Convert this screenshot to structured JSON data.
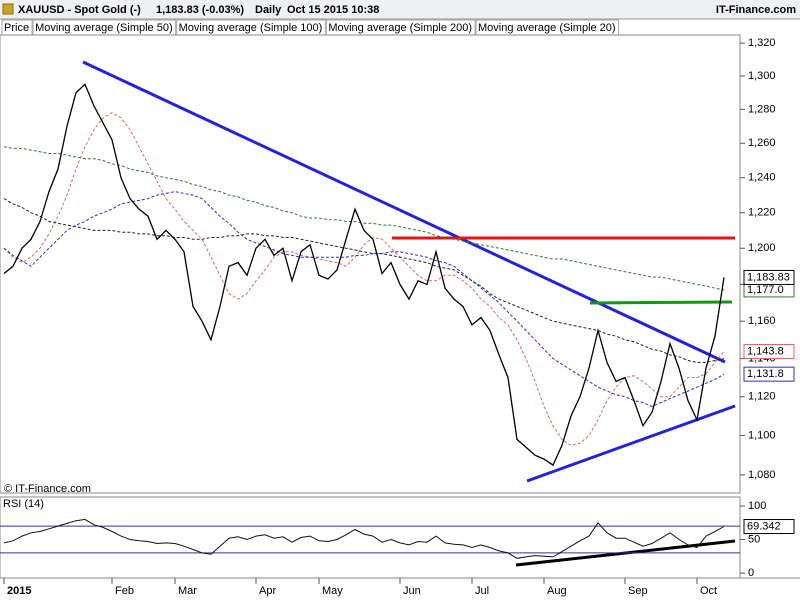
{
  "header": {
    "symbol": "XAUUSD - Spot Gold (-)",
    "quote": "1,183.83 (-0.03%)",
    "period": "Daily",
    "timestamp": "Oct 15 2015 10:38",
    "brand": "IT-Finance.com"
  },
  "watermark": "© IT-Finance.com",
  "chart_data": [
    {
      "type": "line",
      "log_y": true,
      "categories": [
        "2015",
        null,
        null,
        null,
        null,
        null,
        null,
        null,
        null,
        null,
        null,
        null,
        "Feb",
        null,
        null,
        null,
        null,
        null,
        null,
        "Mar",
        null,
        null,
        null,
        null,
        null,
        null,
        null,
        null,
        "Apr",
        null,
        null,
        null,
        null,
        null,
        null,
        "May",
        null,
        null,
        null,
        null,
        null,
        null,
        null,
        null,
        "Jun",
        null,
        null,
        null,
        null,
        null,
        null,
        null,
        "Jul",
        null,
        null,
        null,
        null,
        null,
        null,
        null,
        "Aug",
        null,
        null,
        null,
        null,
        null,
        null,
        null,
        null,
        "Sep",
        null,
        null,
        null,
        null,
        null,
        null,
        null,
        "Oct",
        null,
        null,
        null
      ],
      "ylim": [
        1071,
        1325
      ],
      "yticks": [
        {
          "value": 1080,
          "label": "1,080"
        },
        {
          "value": 1100,
          "label": "1,100"
        },
        {
          "value": 1120,
          "label": "1,120"
        },
        {
          "value": 1140,
          "label": "1,140"
        },
        {
          "value": 1160,
          "label": "1,160"
        },
        {
          "value": 1180,
          "label": "1,180"
        },
        {
          "value": 1200,
          "label": "1,200"
        },
        {
          "value": 1220,
          "label": "1,220"
        },
        {
          "value": 1240,
          "label": "1,240"
        },
        {
          "value": 1260,
          "label": "1,260"
        },
        {
          "value": 1280,
          "label": "1,280"
        },
        {
          "value": 1300,
          "label": "1,300"
        },
        {
          "value": 1320,
          "label": "1,320"
        }
      ],
      "series": [
        {
          "name": "Price",
          "color": "#000000",
          "dashed": false,
          "last_label": "1,183.83",
          "values": [
            1186,
            1190,
            1200,
            1205,
            1215,
            1232,
            1245,
            1270,
            1290,
            1295,
            1282,
            1272,
            1262,
            1240,
            1228,
            1222,
            1218,
            1205,
            1210,
            1205,
            1198,
            1168,
            1160,
            1150,
            1168,
            1190,
            1192,
            1185,
            1200,
            1205,
            1196,
            1200,
            1182,
            1198,
            1202,
            1185,
            1183,
            1188,
            1205,
            1222,
            1210,
            1205,
            1186,
            1192,
            1180,
            1172,
            1182,
            1180,
            1198,
            1178,
            1172,
            1168,
            1158,
            1162,
            1155,
            1142,
            1130,
            1098,
            1094,
            1090,
            1088,
            1085,
            1095,
            1110,
            1120,
            1135,
            1155,
            1138,
            1128,
            1130,
            1118,
            1105,
            1112,
            1128,
            1148,
            1135,
            1118,
            1108,
            1135,
            1152,
            1183.83
          ]
        },
        {
          "name": "Moving average (Simple 50)",
          "color": "#2b2bd9",
          "dashed": true,
          "last_label": "1,131.8",
          "values": [
            1200,
            1196,
            1193,
            1190,
            1195,
            1200,
            1205,
            1210,
            1213,
            1215,
            1218,
            1220,
            1222,
            1225,
            1226,
            1227,
            1228,
            1230,
            1231,
            1232,
            1231,
            1230,
            1228,
            1223,
            1218,
            1214,
            1209,
            1205,
            1203,
            1201,
            1199,
            1197,
            1196,
            1195,
            1195,
            1195,
            1195,
            1195,
            1195,
            1196,
            1196,
            1197,
            1197,
            1198,
            1198,
            1197,
            1196,
            1195,
            1193,
            1192,
            1190,
            1186,
            1182,
            1178,
            1174,
            1170,
            1165,
            1160,
            1155,
            1150,
            1145,
            1140,
            1137,
            1134,
            1131,
            1128,
            1125,
            1123,
            1121,
            1120,
            1118,
            1117,
            1115,
            1117,
            1119,
            1121,
            1123,
            1125,
            1127,
            1129,
            1131.8
          ]
        },
        {
          "name": "Moving average (Simple 100)",
          "color": "#222222",
          "dashed": true,
          "values": [
            1228,
            1225,
            1223,
            1220,
            1218,
            1215,
            1214,
            1213,
            1212,
            1211,
            1210,
            1210,
            1210,
            1209,
            1209,
            1208,
            1208,
            1207,
            1207,
            1206,
            1206,
            1205,
            1205,
            1206,
            1206,
            1207,
            1207,
            1208,
            1208,
            1207,
            1207,
            1206,
            1206,
            1205,
            1204,
            1203,
            1202,
            1201,
            1200,
            1199,
            1198,
            1197,
            1197,
            1196,
            1195,
            1194,
            1193,
            1192,
            1190,
            1189,
            1188,
            1185,
            1182,
            1179,
            1175,
            1172,
            1170,
            1168,
            1166,
            1164,
            1162,
            1160,
            1159,
            1158,
            1157,
            1156,
            1155,
            1153,
            1152,
            1150,
            1149,
            1147,
            1145,
            1144,
            1142,
            1141,
            1139,
            1138,
            1138,
            1139,
            1140
          ]
        },
        {
          "name": "Moving average (Simple 200)",
          "color": "#2e7d2e",
          "dashed": true,
          "last_label": "1,177.0",
          "values": [
            1258,
            1257,
            1257,
            1256,
            1255,
            1254,
            1254,
            1253,
            1252,
            1251,
            1251,
            1250,
            1248,
            1247,
            1245,
            1244,
            1243,
            1241,
            1240,
            1239,
            1238,
            1236,
            1235,
            1233,
            1232,
            1230,
            1229,
            1227,
            1226,
            1224,
            1223,
            1221,
            1220,
            1218,
            1217,
            1217,
            1216,
            1216,
            1215,
            1215,
            1214,
            1214,
            1213,
            1213,
            1212,
            1211,
            1210,
            1209,
            1207,
            1206,
            1205,
            1204,
            1203,
            1202,
            1201,
            1200,
            1199,
            1198,
            1197,
            1196,
            1195,
            1194,
            1194,
            1193,
            1192,
            1191,
            1190,
            1189,
            1188,
            1187,
            1186,
            1185,
            1184,
            1184,
            1183,
            1182,
            1181,
            1180,
            1179,
            1178,
            1177
          ]
        },
        {
          "name": "Moving average (Simple 20)",
          "color": "#e06666",
          "dashed": true,
          "last_label": "1,143.8",
          "values": [
            1200,
            1195,
            1192,
            1195,
            1200,
            1208,
            1218,
            1230,
            1245,
            1258,
            1268,
            1275,
            1278,
            1275,
            1268,
            1258,
            1248,
            1238,
            1228,
            1222,
            1215,
            1210,
            1205,
            1195,
            1185,
            1175,
            1172,
            1175,
            1182,
            1188,
            1195,
            1198,
            1198,
            1196,
            1195,
            1194,
            1193,
            1192,
            1190,
            1195,
            1202,
            1206,
            1205,
            1200,
            1195,
            1190,
            1185,
            1182,
            1182,
            1185,
            1185,
            1182,
            1178,
            1172,
            1168,
            1162,
            1158,
            1150,
            1140,
            1128,
            1115,
            1105,
            1098,
            1095,
            1096,
            1100,
            1108,
            1118,
            1125,
            1130,
            1131,
            1128,
            1124,
            1120,
            1120,
            1125,
            1130,
            1130,
            1132,
            1138,
            1143.8
          ]
        }
      ]
    },
    {
      "type": "line",
      "title": "RSI (14)",
      "ylim": [
        0,
        100
      ],
      "yticks": [
        0,
        50,
        100
      ],
      "levels": [
        30,
        70
      ],
      "color": "#111111",
      "last_label": "69.342",
      "values": [
        45,
        48,
        55,
        60,
        62,
        66,
        70,
        74,
        78,
        80,
        72,
        68,
        62,
        55,
        50,
        48,
        47,
        44,
        45,
        44,
        40,
        35,
        30,
        28,
        40,
        52,
        54,
        50,
        55,
        57,
        52,
        54,
        46,
        53,
        55,
        48,
        47,
        50,
        57,
        65,
        58,
        55,
        46,
        50,
        45,
        42,
        47,
        46,
        55,
        45,
        43,
        42,
        38,
        42,
        38,
        33,
        30,
        22,
        24,
        26,
        25,
        24,
        32,
        40,
        48,
        55,
        75,
        60,
        52,
        52,
        46,
        40,
        44,
        52,
        60,
        50,
        42,
        38,
        55,
        62,
        69.342
      ]
    }
  ]
}
